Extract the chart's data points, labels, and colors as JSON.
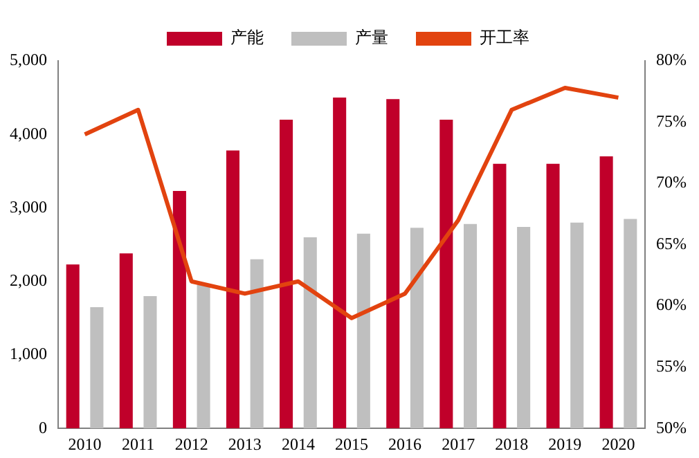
{
  "chart_data": {
    "type": "bar",
    "categories": [
      "2010",
      "2011",
      "2012",
      "2013",
      "2014",
      "2015",
      "2016",
      "2017",
      "2018",
      "2019",
      "2020"
    ],
    "series": [
      {
        "name": "产能",
        "color": "#c0002a",
        "values": [
          2230,
          2380,
          3230,
          3780,
          4200,
          4500,
          4480,
          4200,
          3600,
          3600,
          3700
        ]
      },
      {
        "name": "产量",
        "color": "#bfbfbf",
        "values": [
          1650,
          1800,
          1950,
          2300,
          2600,
          2650,
          2730,
          2780,
          2740,
          2800,
          2850
        ]
      },
      {
        "name": "开工率",
        "type": "line",
        "axis": "y2",
        "color": "#e2430f",
        "values": [
          74,
          76,
          62,
          61,
          62,
          59,
          61,
          67,
          76,
          77.8,
          77
        ]
      }
    ],
    "ylim": [
      0,
      5000
    ],
    "yticks": [
      0,
      {
        "value": 1000,
        "label": "1,000"
      },
      {
        "value": 2000,
        "label": "2,000"
      },
      {
        "value": 3000,
        "label": "3,000"
      },
      {
        "value": 4000,
        "label": "4,000"
      },
      {
        "value": 5000,
        "label": "5,000"
      }
    ],
    "y2lim": [
      50,
      80
    ],
    "y2ticks": [
      {
        "value": 50,
        "label": "50%"
      },
      {
        "value": 55,
        "label": "55%"
      },
      {
        "value": 60,
        "label": "60%"
      },
      {
        "value": 65,
        "label": "65%"
      },
      {
        "value": 70,
        "label": "70%"
      },
      {
        "value": 75,
        "label": "75%"
      },
      {
        "value": 80,
        "label": "80%"
      }
    ],
    "grid": false,
    "legend": "top",
    "marker": "none",
    "line_style": "solid"
  }
}
